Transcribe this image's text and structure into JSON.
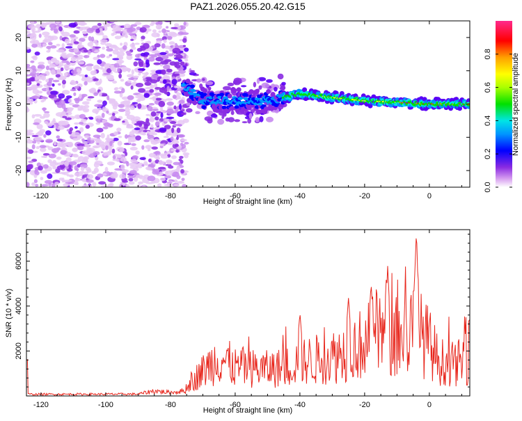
{
  "figure_title": "PAZ1.2026.055.20.42.G15",
  "colors": {
    "snr_line": "#e8261c",
    "frame": "#000000",
    "colormap": [
      "#ffffff",
      "#e6c8f5",
      "#c78af0",
      "#8a2be2",
      "#5a00f5",
      "#0000ff",
      "#0096ff",
      "#00e5e5",
      "#00e000",
      "#aaff00",
      "#ffff00",
      "#ffa000",
      "#ff0000",
      "#ff2a8c"
    ]
  },
  "chart_data": [
    {
      "type": "heatmap",
      "title": "",
      "xlabel": "Height of straight line (km)",
      "ylabel": "Frequency (Hz)",
      "xlim": [
        -124.5,
        12.5
      ],
      "ylim": [
        -25,
        25
      ],
      "xticks": [
        -120,
        -100,
        -80,
        -60,
        -40,
        -20,
        0
      ],
      "yticks": [
        -20,
        -10,
        0,
        10,
        20
      ],
      "colorbar": {
        "label": "Normalized spectral amplitude",
        "range": [
          0,
          1
        ],
        "ticks": [
          "0.0",
          "0.2",
          "0.4",
          "0.6",
          "0.8"
        ]
      },
      "ridge": {
        "description_points_km_hz": [
          [
            -75,
            5
          ],
          [
            -70,
            1
          ],
          [
            -60,
            1
          ],
          [
            -50,
            1
          ],
          [
            -40,
            3
          ],
          [
            -30,
            2
          ],
          [
            -20,
            1
          ],
          [
            -10,
            0.5
          ],
          [
            0,
            0
          ],
          [
            10,
            0
          ]
        ],
        "peak_amplitude_start_km": -48
      },
      "noise_region_km": [
        -124.5,
        -75
      ]
    },
    {
      "type": "line",
      "title": "",
      "xlabel": "Height of straight line (km)",
      "ylabel": "SNR (10 * v/v)",
      "xlim": [
        -124.5,
        12.5
      ],
      "ylim": [
        0,
        7400
      ],
      "xticks": [
        -120,
        -100,
        -80,
        -60,
        -40,
        -20,
        0
      ],
      "yticks": [
        2000,
        4000,
        6000
      ],
      "series": [
        {
          "name": "SNR",
          "envelope_km_snr": [
            [
              -124,
              100
            ],
            [
              -90,
              110
            ],
            [
              -85,
              300
            ],
            [
              -80,
              200
            ],
            [
              -76,
              300
            ],
            [
              -72,
              1200
            ],
            [
              -65,
              2500
            ],
            [
              -60,
              1800
            ],
            [
              -50,
              1700
            ],
            [
              -45,
              1800
            ],
            [
              -40,
              2200
            ],
            [
              -35,
              2300
            ],
            [
              -30,
              2500
            ],
            [
              -25,
              2900
            ],
            [
              -20,
              3400
            ],
            [
              -15,
              4000
            ],
            [
              -10,
              3600
            ],
            [
              -5,
              4200
            ],
            [
              -2,
              3800
            ],
            [
              0,
              3300
            ],
            [
              3,
              2200
            ],
            [
              8,
              2000
            ],
            [
              12,
              2400
            ]
          ],
          "labeled_peaks_km_snr": [
            [
              -13,
              6150
            ],
            [
              -4,
              7300
            ],
            [
              -18,
              5000
            ],
            [
              -25,
              4400
            ],
            [
              -40,
              3700
            ]
          ]
        }
      ]
    }
  ]
}
